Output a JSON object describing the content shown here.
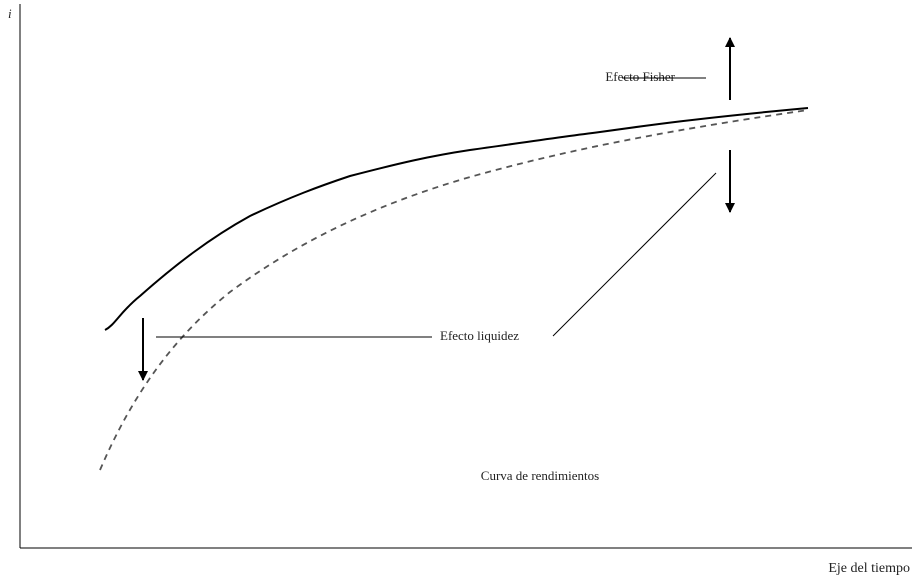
{
  "diagram": {
    "y_axis_label": "i",
    "x_axis_label": "Eje del tiempo",
    "labels": {
      "fisher": "Efecto Fisher",
      "liquidity": "Efecto liquidez",
      "curve": "Curva de rendimientos"
    }
  }
}
